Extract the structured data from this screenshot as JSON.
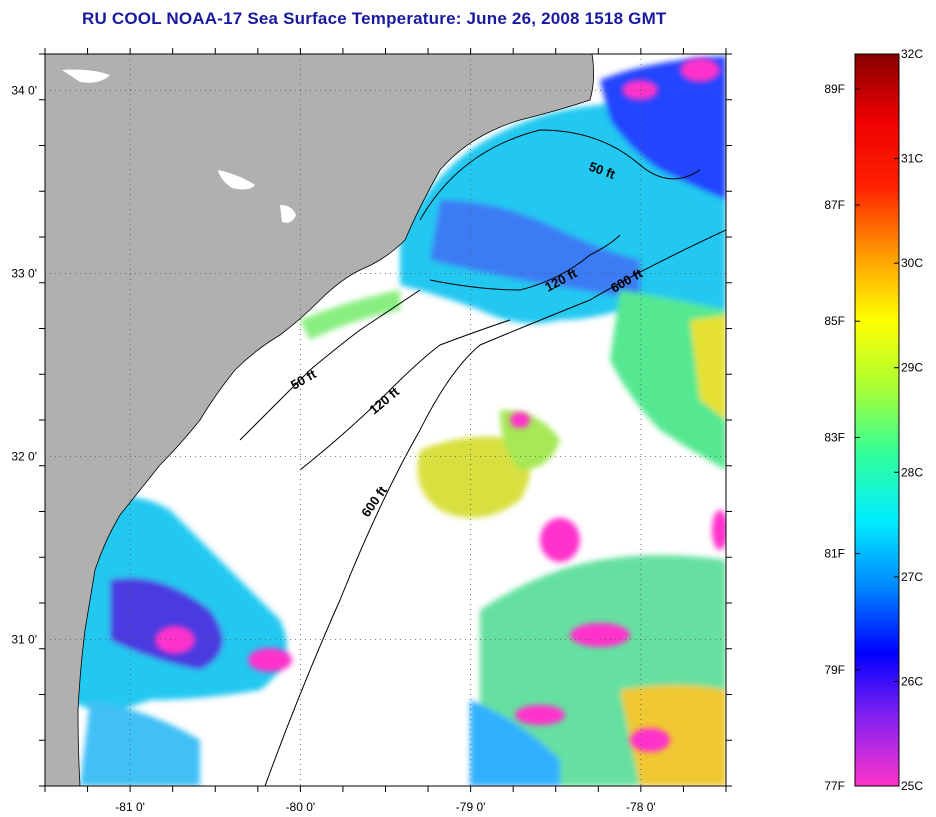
{
  "title": "RU COOL  NOAA-17  Sea Surface Temperature:  June 26, 2008 1518 GMT",
  "map": {
    "lon_range": [
      -81.5,
      -77.5
    ],
    "lat_range": [
      30.2,
      34.2
    ],
    "lon_ticks": [
      {
        "value": -81,
        "label": "-81 0'"
      },
      {
        "value": -80,
        "label": "-80 0'"
      },
      {
        "value": -79,
        "label": "-79 0'"
      },
      {
        "value": -78,
        "label": "-78 0'"
      }
    ],
    "lat_ticks": [
      {
        "value": 34,
        "label": "34 0'"
      },
      {
        "value": 33,
        "label": "33 0'"
      },
      {
        "value": 32,
        "label": "32 0'"
      },
      {
        "value": 31,
        "label": "31 0'"
      }
    ],
    "contours": [
      {
        "label": "50 ft",
        "color": "#000000"
      },
      {
        "label": "120 ft",
        "color": "#000000"
      },
      {
        "label": "600 ft",
        "color": "#000000"
      }
    ],
    "land_color": "#b0b0b0",
    "no_data_color": "#ffffff",
    "grid": "dotted"
  },
  "colorbar": {
    "celsius_labels": [
      "32C",
      "31C",
      "30C",
      "29C",
      "28C",
      "27C",
      "26C",
      "25C"
    ],
    "fahrenheit_labels": [
      "89F",
      "87F",
      "85F",
      "83F",
      "81F",
      "79F",
      "77F"
    ],
    "celsius_range": [
      25,
      32
    ],
    "fahrenheit_range": [
      77,
      89.6
    ],
    "stops": [
      "#ff33cc",
      "#8822ee",
      "#0000ff",
      "#0088ff",
      "#00eeff",
      "#33ff99",
      "#aaff33",
      "#ffff00",
      "#ff9900",
      "#ff2200",
      "#ee0000",
      "#880000"
    ]
  }
}
